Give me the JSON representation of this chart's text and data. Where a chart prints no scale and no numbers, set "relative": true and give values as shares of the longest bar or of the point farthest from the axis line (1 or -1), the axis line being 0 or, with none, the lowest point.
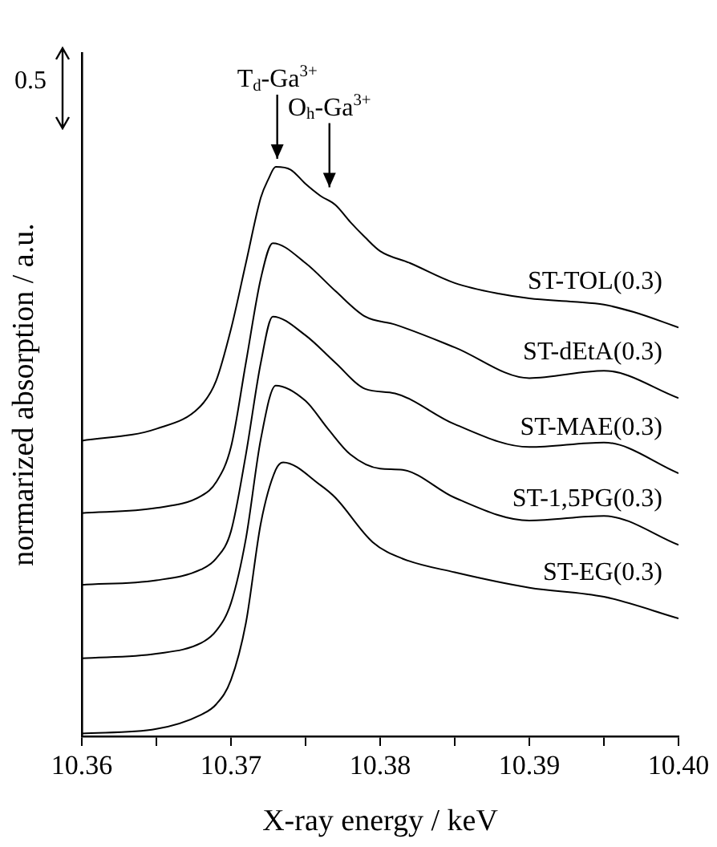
{
  "chart_data": {
    "type": "line",
    "relative": true,
    "xlabel": "X-ray energy / keV",
    "ylabel": "normarized absorption / a.u.",
    "xlim": [
      10.36,
      10.4
    ],
    "xticks": [
      10.36,
      {
        "value": 10.365,
        "label": null
      },
      10.37,
      {
        "value": 10.375,
        "label": null
      },
      10.38,
      {
        "value": 10.385,
        "label": null
      },
      10.39,
      {
        "value": 10.395,
        "label": null
      },
      {
        "value": 10.4,
        "label": "10.40"
      }
    ],
    "grid": false,
    "legend": false,
    "marker": "none",
    "line_style": "solid",
    "tick_labels": "x",
    "annotations": [
      {
        "text": "T$_{d}$-Ga$^{3+}$",
        "x": 10.3731,
        "y": 1
      },
      {
        "text": "O$_{h}$-Ga$^{3+}$",
        "x": 10.3766,
        "y": 0.95
      },
      "0.5"
    ],
    "series": [
      {
        "name": "ST-TOL(0.3)",
        "color": "#000000",
        "x": [
          10.36,
          10.365,
          10.368,
          10.369,
          10.37,
          10.371,
          10.372,
          10.3725,
          10.373,
          10.374,
          10.375,
          10.376,
          10.377,
          10.378,
          10.379,
          10.38,
          10.382,
          10.385,
          10.388,
          10.39,
          10.393,
          10.395,
          10.397,
          10.4
        ],
        "values": [
          0.519,
          0.54,
          0.581,
          0.624,
          0.715,
          0.831,
          0.946,
          0.978,
          1,
          0.995,
          0.97,
          0.949,
          0.933,
          0.903,
          0.876,
          0.852,
          0.831,
          0.796,
          0.777,
          0.769,
          0.763,
          0.758,
          0.745,
          0.718
        ]
      },
      {
        "name": "ST-dEtA(0.3)",
        "color": "#000000",
        "x": [
          10.36,
          10.365,
          10.368,
          10.369,
          10.37,
          10.371,
          10.372,
          10.3728,
          10.375,
          10.377,
          10.379,
          10.381,
          10.385,
          10.39,
          10.395,
          10.4
        ],
        "values": [
          0.392,
          0.401,
          0.422,
          0.446,
          0.508,
          0.656,
          0.804,
          0.866,
          0.831,
          0.782,
          0.737,
          0.723,
          0.683,
          0.629,
          0.642,
          0.594
        ]
      },
      {
        "name": "ST-MAE(0.3)",
        "color": "#000000",
        "x": [
          10.36,
          10.365,
          10.368,
          10.369,
          10.37,
          10.371,
          10.372,
          10.3728,
          10.375,
          10.377,
          10.379,
          10.381,
          10.385,
          10.39,
          10.395,
          10.4
        ],
        "values": [
          0.266,
          0.274,
          0.293,
          0.312,
          0.36,
          0.495,
          0.656,
          0.737,
          0.704,
          0.656,
          0.61,
          0.602,
          0.548,
          0.508,
          0.516,
          0.462
        ]
      },
      {
        "name": "ST-1,5PG(0.3)",
        "color": "#000000",
        "x": [
          10.36,
          10.365,
          10.368,
          10.369,
          10.37,
          10.371,
          10.372,
          10.373,
          10.375,
          10.3765,
          10.378,
          10.38,
          10.3815,
          10.385,
          10.39,
          10.395,
          10.4
        ],
        "values": [
          0.137,
          0.145,
          0.164,
          0.185,
          0.234,
          0.347,
          0.522,
          0.616,
          0.589,
          0.54,
          0.495,
          0.47,
          0.468,
          0.419,
          0.379,
          0.387,
          0.336
        ]
      },
      {
        "name": "ST-EG(0.3)",
        "color": "#000000",
        "x": [
          10.36,
          10.365,
          10.368,
          10.369,
          10.37,
          10.371,
          10.372,
          10.373,
          10.3735,
          10.376,
          10.377,
          10.3795,
          10.3815,
          10.385,
          10.39,
          10.395,
          10.4
        ],
        "values": [
          0.005,
          0.013,
          0.038,
          0.056,
          0.099,
          0.199,
          0.374,
          0.468,
          0.481,
          0.441,
          0.419,
          0.341,
          0.312,
          0.288,
          0.261,
          0.245,
          0.207
        ]
      }
    ]
  }
}
